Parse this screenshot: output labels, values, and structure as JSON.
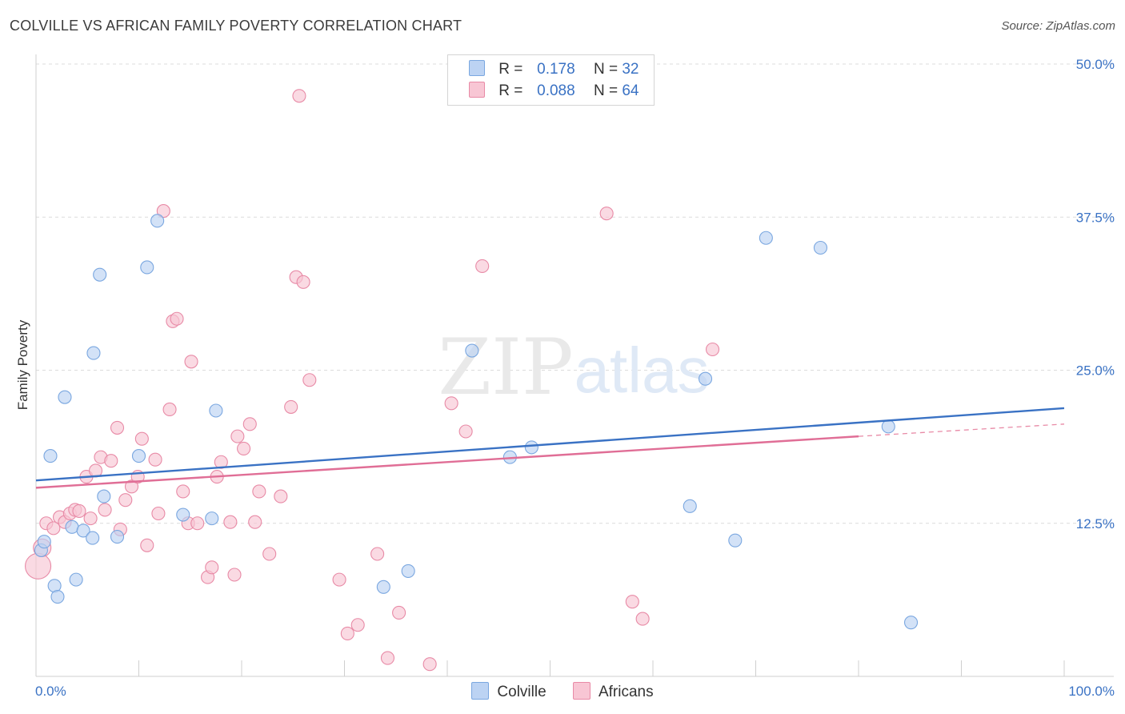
{
  "title": "COLVILLE VS AFRICAN FAMILY POVERTY CORRELATION CHART",
  "source": "Source: ZipAtlas.com",
  "watermark": {
    "zip": "ZIP",
    "atlas": "atlas"
  },
  "legend": {
    "r_label": "R =",
    "n_label": "N =",
    "rows": [
      {
        "r": "0.178",
        "n": "32",
        "color": "#7aa7e0",
        "fill": "#bcd3f3"
      },
      {
        "r": "0.088",
        "n": "64",
        "color": "#e88aa6",
        "fill": "#f8c6d4"
      }
    ]
  },
  "bottom_legend": [
    "Colville",
    "Africans"
  ],
  "chart_data": {
    "type": "scatter",
    "title": "COLVILLE VS AFRICAN FAMILY POVERTY CORRELATION CHART",
    "xlabel": "",
    "ylabel": "Family Poverty",
    "xlim": [
      0,
      100
    ],
    "ylim": [
      0,
      50
    ],
    "x_tick_labels": [
      "0.0%",
      "100.0%"
    ],
    "y_ticks": [
      12.5,
      25.0,
      37.5,
      50.0
    ],
    "y_tick_labels": [
      "12.5%",
      "25.0%",
      "37.5%",
      "50.0%"
    ],
    "series": [
      {
        "name": "Colville",
        "color": "#3a72c4",
        "point_fill": "#bcd3f3",
        "point_stroke": "#7aa7e0",
        "trend": {
          "x": [
            0,
            100
          ],
          "y": [
            16.0,
            21.9
          ]
        },
        "points": [
          [
            0.5,
            10.3
          ],
          [
            0.8,
            11.0
          ],
          [
            1.4,
            18.0
          ],
          [
            1.8,
            7.4
          ],
          [
            2.1,
            6.5
          ],
          [
            2.8,
            22.8
          ],
          [
            3.5,
            12.2
          ],
          [
            3.9,
            7.9
          ],
          [
            4.6,
            11.9
          ],
          [
            5.5,
            11.3
          ],
          [
            5.6,
            26.4
          ],
          [
            6.2,
            32.8
          ],
          [
            6.6,
            14.7
          ],
          [
            7.9,
            11.4
          ],
          [
            10.0,
            18.0
          ],
          [
            10.8,
            33.4
          ],
          [
            11.8,
            37.2
          ],
          [
            14.3,
            13.2
          ],
          [
            17.1,
            12.9
          ],
          [
            17.5,
            21.7
          ],
          [
            33.8,
            7.3
          ],
          [
            36.2,
            8.6
          ],
          [
            42.4,
            26.6
          ],
          [
            46.1,
            17.9
          ],
          [
            48.2,
            18.7
          ],
          [
            63.6,
            13.9
          ],
          [
            65.1,
            24.3
          ],
          [
            68.0,
            11.1
          ],
          [
            71.0,
            35.8
          ],
          [
            76.3,
            35.0
          ],
          [
            82.9,
            20.4
          ],
          [
            85.1,
            4.4
          ]
        ]
      },
      {
        "name": "Africans",
        "color": "#e06e96",
        "point_fill": "#f8c6d4",
        "point_stroke": "#e88aa6",
        "trend": {
          "x": [
            0,
            80
          ],
          "y": [
            15.4,
            19.6
          ]
        },
        "trend_dashed": {
          "x": [
            80,
            100
          ],
          "y": [
            19.6,
            20.6
          ]
        },
        "points": [
          [
            0.2,
            9.0
          ],
          [
            0.6,
            10.5
          ],
          [
            1.0,
            12.5
          ],
          [
            1.7,
            12.1
          ],
          [
            2.3,
            13.0
          ],
          [
            2.8,
            12.6
          ],
          [
            3.3,
            13.3
          ],
          [
            3.8,
            13.6
          ],
          [
            4.2,
            13.5
          ],
          [
            4.9,
            16.3
          ],
          [
            5.3,
            12.9
          ],
          [
            5.8,
            16.8
          ],
          [
            6.3,
            17.9
          ],
          [
            6.7,
            13.6
          ],
          [
            7.3,
            17.6
          ],
          [
            7.9,
            20.3
          ],
          [
            8.2,
            12.0
          ],
          [
            8.7,
            14.4
          ],
          [
            9.3,
            15.5
          ],
          [
            9.9,
            16.3
          ],
          [
            10.3,
            19.4
          ],
          [
            10.8,
            10.7
          ],
          [
            11.6,
            17.7
          ],
          [
            11.9,
            13.3
          ],
          [
            12.4,
            38.0
          ],
          [
            13.0,
            21.8
          ],
          [
            13.3,
            29.0
          ],
          [
            13.7,
            29.2
          ],
          [
            14.3,
            15.1
          ],
          [
            14.8,
            12.5
          ],
          [
            15.1,
            25.7
          ],
          [
            15.7,
            12.5
          ],
          [
            16.7,
            8.1
          ],
          [
            17.1,
            8.9
          ],
          [
            17.6,
            16.3
          ],
          [
            18.0,
            17.5
          ],
          [
            18.9,
            12.6
          ],
          [
            19.3,
            8.3
          ],
          [
            19.6,
            19.6
          ],
          [
            20.2,
            18.6
          ],
          [
            20.8,
            20.6
          ],
          [
            21.3,
            12.6
          ],
          [
            21.7,
            15.1
          ],
          [
            22.7,
            10.0
          ],
          [
            23.8,
            14.7
          ],
          [
            24.8,
            22.0
          ],
          [
            25.3,
            32.6
          ],
          [
            25.6,
            47.4
          ],
          [
            26.0,
            32.2
          ],
          [
            26.6,
            24.2
          ],
          [
            29.5,
            7.9
          ],
          [
            30.3,
            3.5
          ],
          [
            31.3,
            4.2
          ],
          [
            33.2,
            10.0
          ],
          [
            34.2,
            1.5
          ],
          [
            35.3,
            5.2
          ],
          [
            38.3,
            1.0
          ],
          [
            40.4,
            22.3
          ],
          [
            41.8,
            20.0
          ],
          [
            43.4,
            33.5
          ],
          [
            55.5,
            37.8
          ],
          [
            58.0,
            6.1
          ],
          [
            59.0,
            4.7
          ],
          [
            65.8,
            26.7
          ]
        ]
      }
    ]
  }
}
